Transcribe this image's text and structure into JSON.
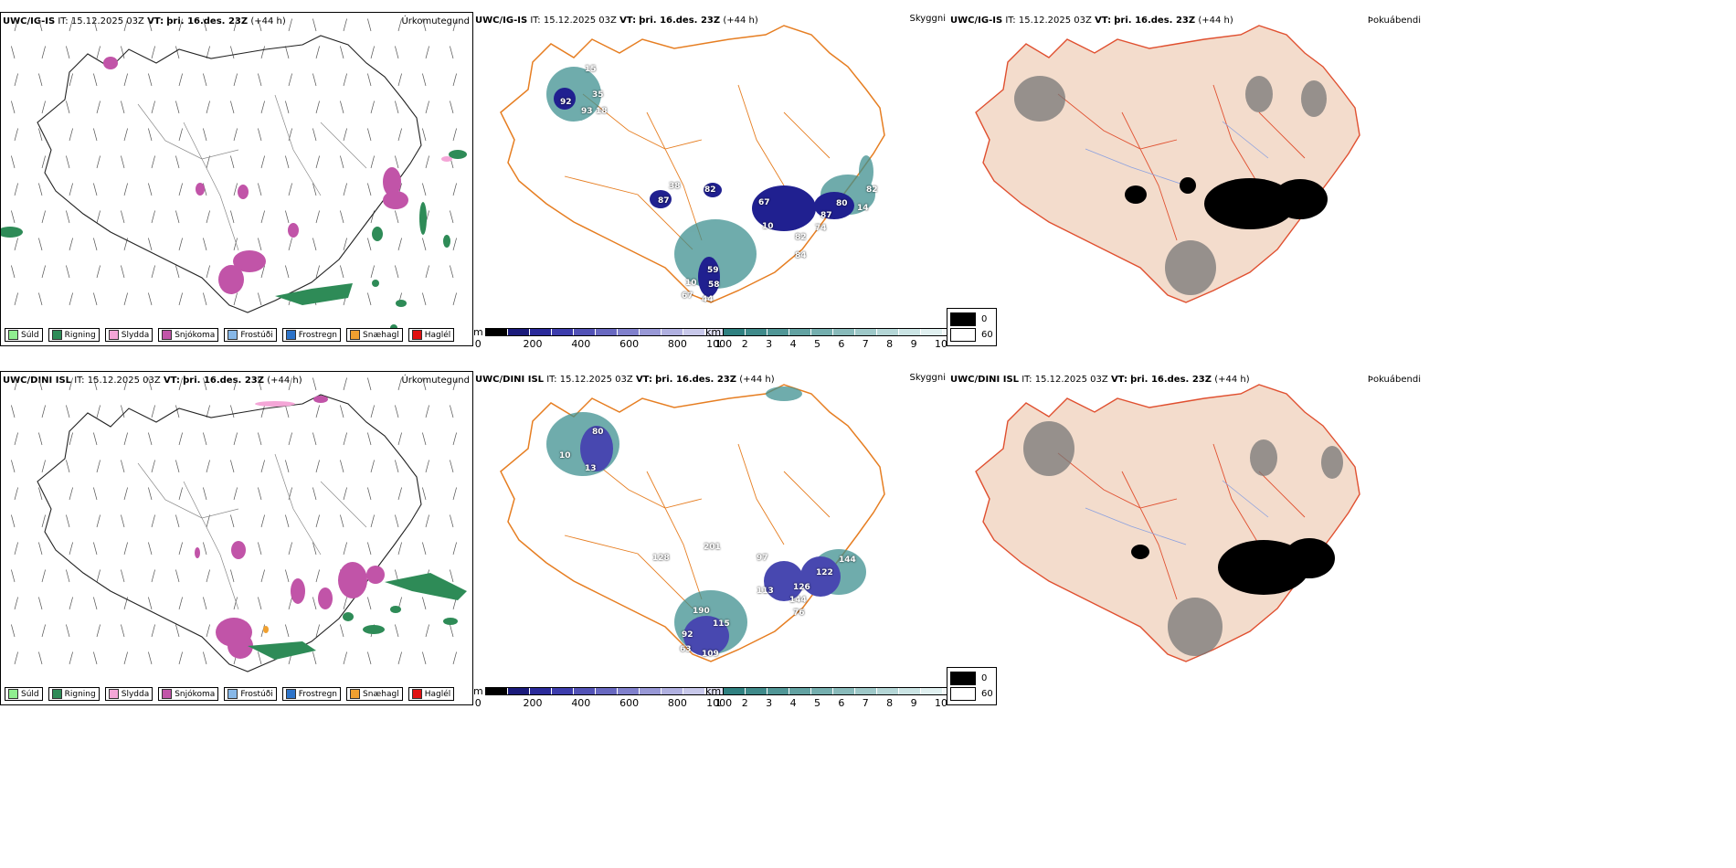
{
  "rows": [
    {
      "model": "UWC/IG-IS",
      "it_label": "IT:",
      "it_value": "15.12.2025 03Z",
      "vt_label": "VT:",
      "vt_value": "þri. 16.des. 23Z",
      "lead": "(+44 h)",
      "panel_titles": [
        "Úrkomutegund",
        "Skyggni",
        "Þokuábendi"
      ],
      "visibility_labels": [
        "15",
        "35",
        "92",
        "93",
        "18",
        "87",
        "38",
        "82",
        "67",
        "10",
        "80",
        "87",
        "74",
        "82",
        "84",
        "82",
        "14",
        "59",
        "58",
        "44",
        "67",
        "10"
      ]
    },
    {
      "model": "UWC/DINI ISL",
      "it_label": "IT:",
      "it_value": "15.12.2025 03Z",
      "vt_label": "VT:",
      "vt_value": "þri. 16.des. 23Z",
      "lead": "(+44 h)",
      "panel_titles": [
        "Úrkomutegund",
        "Skyggni",
        "Þokuábendi"
      ],
      "visibility_labels": [
        "80",
        "10",
        "13",
        "128",
        "201",
        "97",
        "113",
        "126",
        "144",
        "122",
        "144",
        "76",
        "190",
        "115",
        "92",
        "63",
        "109"
      ]
    }
  ],
  "precip_legend": [
    {
      "label": "Súld",
      "color": "#90ee90"
    },
    {
      "label": "Rigning",
      "color": "#2e8b57"
    },
    {
      "label": "Slydda",
      "color": "#f4a6d7"
    },
    {
      "label": "Snjókoma",
      "color": "#c154a8"
    },
    {
      "label": "Frostúði",
      "color": "#87b8e8"
    },
    {
      "label": "Frostregn",
      "color": "#2c73c9"
    },
    {
      "label": "Snæhagl",
      "color": "#f0a030"
    },
    {
      "label": "Haglél",
      "color": "#e01010"
    }
  ],
  "cloud_base_scale": {
    "unit": "m",
    "ticks": [
      "0",
      "200",
      "400",
      "600",
      "800",
      "1000"
    ],
    "colors": [
      "#000000",
      "#1a1a7a",
      "#2a2a9a",
      "#3c3cac",
      "#5252b6",
      "#6868c0",
      "#8080cc",
      "#9898d6",
      "#b0b0e0",
      "#c8c8ea",
      "#e0e0f4"
    ]
  },
  "visibility_scale": {
    "unit": "km",
    "ticks": [
      "1",
      "2",
      "3",
      "4",
      "5",
      "6",
      "7",
      "8",
      "9",
      "10"
    ],
    "colors": [
      "#2f8080",
      "#3f8a8a",
      "#509696",
      "#62a2a2",
      "#74aeae",
      "#88baba",
      "#9ec8c8",
      "#b4d6d6",
      "#cae4e4",
      "#e0f0f0",
      "#f4fafa"
    ]
  },
  "fog_legend": [
    {
      "label": "0",
      "color": "#000000"
    },
    {
      "label": "60",
      "color": "#ffffff"
    }
  ],
  "colors": {
    "roads": "#e67e22",
    "fog_land": "#f3dccc",
    "snow": "#c154a8",
    "rain": "#2e8b57",
    "low_cloud": "#202090",
    "vis_teal": "#3f9090"
  }
}
